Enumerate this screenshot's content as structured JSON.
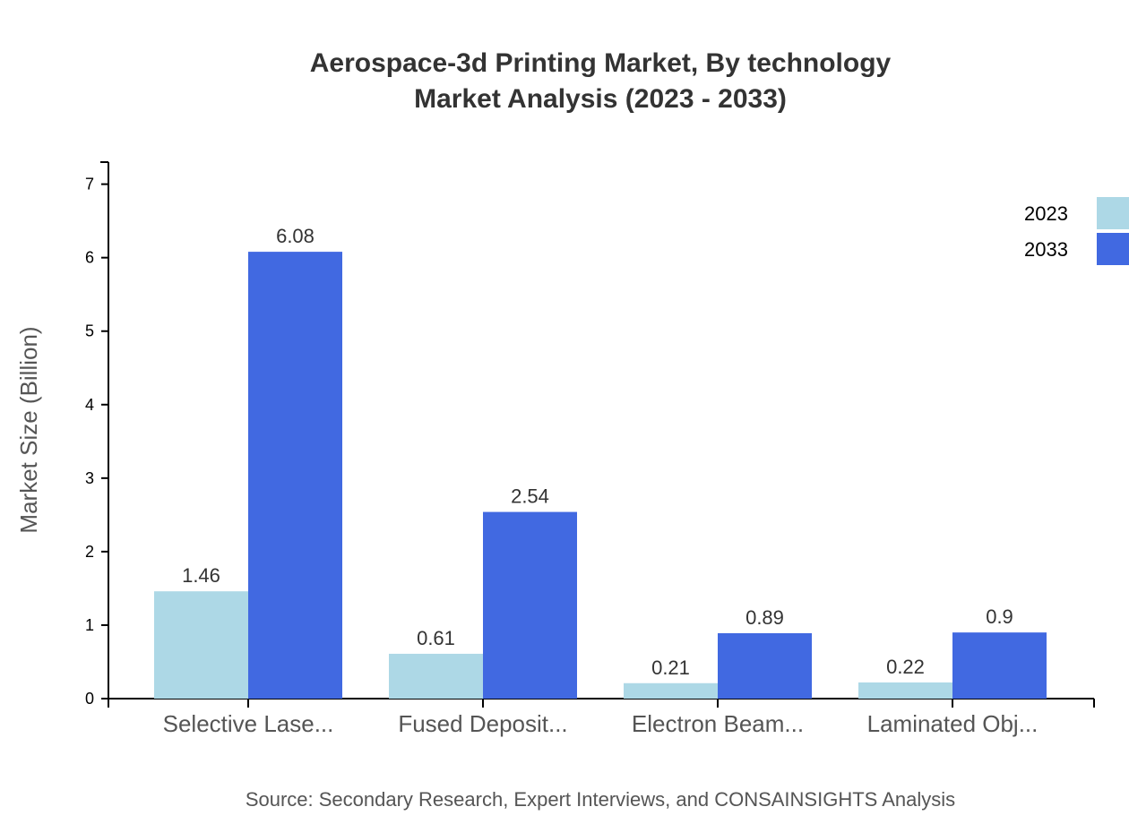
{
  "chart_data": {
    "type": "bar",
    "title": "Aerospace-3d Printing Market, By technology",
    "subtitle": "Market Analysis (2023 - 2033)",
    "xlabel": "",
    "ylabel": "Market Size (Billion)",
    "ylim": [
      0,
      7.3
    ],
    "yticks": [
      0,
      1,
      2,
      3,
      4,
      5,
      6,
      7
    ],
    "categories": [
      "Selective Lase...",
      "Fused Deposit...",
      "Electron Beam...",
      "Laminated Obj..."
    ],
    "series": [
      {
        "name": "2023",
        "color": "#ADD8E6",
        "values": [
          1.46,
          0.61,
          0.21,
          0.22
        ]
      },
      {
        "name": "2033",
        "color": "#4169E1",
        "values": [
          6.08,
          2.54,
          0.89,
          0.9
        ]
      }
    ],
    "grid": false,
    "legend_position": "top-right",
    "source": "Source: Secondary Research, Expert Interviews, and CONSAINSIGHTS Analysis"
  }
}
